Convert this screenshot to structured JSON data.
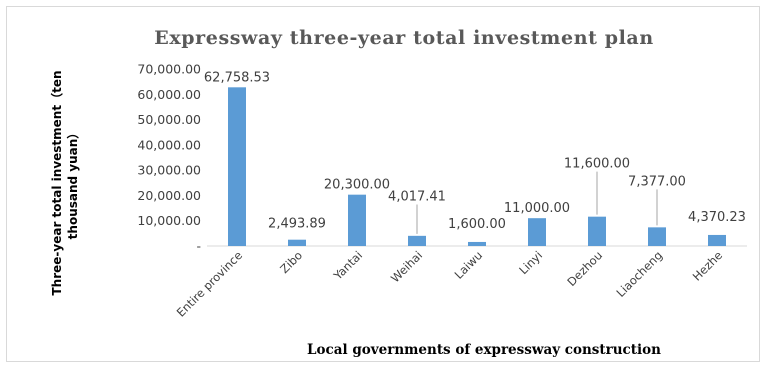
{
  "chart_data": {
    "type": "bar",
    "title": "Expressway three-year total investment plan",
    "xlabel": "Local governments of expressway construction",
    "ylabel_lines": [
      "Three-year total investment（ten",
      "thousand yuan）"
    ],
    "categories": [
      "Entire province",
      "Zibo",
      "Yantai",
      "Weihai",
      "Laiwu",
      "Linyi",
      "Dezhou",
      "Liaocheng",
      "Hezhe"
    ],
    "values": [
      62758.53,
      2493.89,
      20300.0,
      4017.41,
      1600.0,
      11000.0,
      11600.0,
      7377.0,
      4370.23
    ],
    "value_labels": [
      "62,758.53",
      "2,493.89",
      "20,300.00",
      "4,017.41",
      "1,600.00",
      "11,000.00",
      "11,600.00",
      "7,377.00",
      "4,370.23"
    ],
    "yticks": [
      0,
      10000,
      20000,
      30000,
      40000,
      50000,
      60000,
      70000
    ],
    "ytick_labels": [
      "-",
      "10,000.00",
      "20,000.00",
      "30,000.00",
      "40,000.00",
      "50,000.00",
      "60,000.00",
      "70,000.00"
    ],
    "ylim": [
      0,
      70000
    ],
    "grid": false,
    "legend": "none",
    "bar_color": "#5b9bd5"
  }
}
